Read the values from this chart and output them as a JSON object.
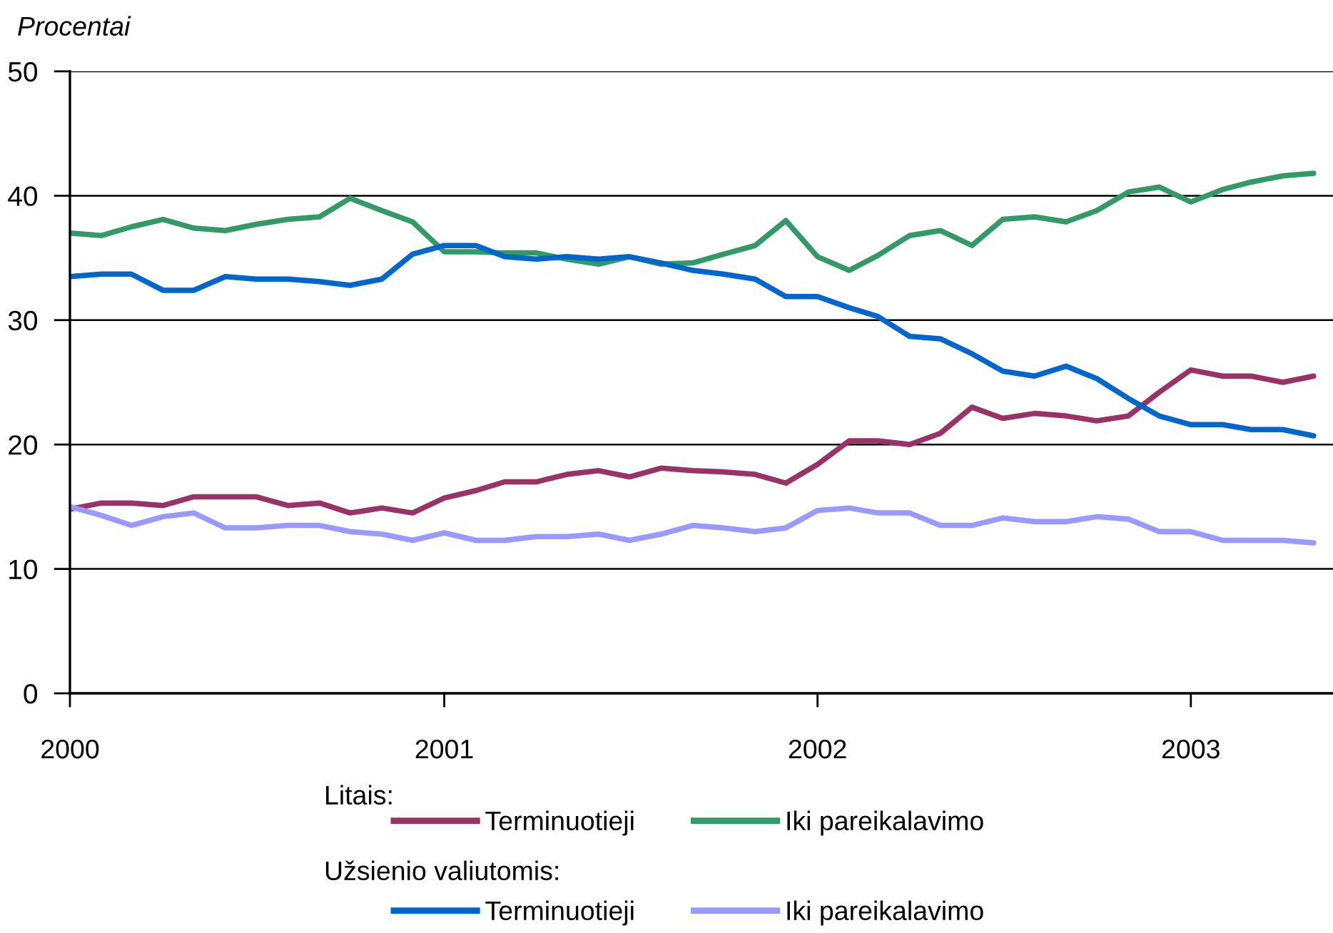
{
  "chart_data": {
    "type": "line",
    "ylabel": "Procentai",
    "x": [
      "2000-01",
      "2000-02",
      "2000-03",
      "2000-04",
      "2000-05",
      "2000-06",
      "2000-07",
      "2000-08",
      "2000-09",
      "2000-10",
      "2000-11",
      "2000-12",
      "2001-01",
      "2001-02",
      "2001-03",
      "2001-04",
      "2001-05",
      "2001-06",
      "2001-07",
      "2001-08",
      "2001-09",
      "2001-10",
      "2001-11",
      "2001-12",
      "2002-01",
      "2002-02",
      "2002-03",
      "2002-04",
      "2002-05",
      "2002-06",
      "2002-07",
      "2002-08",
      "2002-09",
      "2002-10",
      "2002-11",
      "2002-12",
      "2003-01",
      "2003-02",
      "2003-03",
      "2003-04",
      "2003-05"
    ],
    "series": [
      {
        "name": "Terminuotieji",
        "color": "#993366",
        "values": [
          14.8,
          15.3,
          15.3,
          15.1,
          15.8,
          15.8,
          15.8,
          15.1,
          15.3,
          14.5,
          14.9,
          14.5,
          15.7,
          16.3,
          17.0,
          17.0,
          17.6,
          17.9,
          17.4,
          18.1,
          17.9,
          17.8,
          17.6,
          16.9,
          18.4,
          20.3,
          20.3,
          20.0,
          20.9,
          23.0,
          22.1,
          22.5,
          22.3,
          21.9,
          22.3,
          24.2,
          26.0,
          25.5,
          25.5,
          25.0,
          25.5
        ]
      },
      {
        "name": "Iki pareikalavimo",
        "color": "#339966",
        "values": [
          37.0,
          36.8,
          37.5,
          38.1,
          37.4,
          37.2,
          37.7,
          38.1,
          38.3,
          39.8,
          38.8,
          37.9,
          35.5,
          35.5,
          35.4,
          35.4,
          34.9,
          34.5,
          35.1,
          34.5,
          34.6,
          35.3,
          36.0,
          38.0,
          35.1,
          34.0,
          35.2,
          36.8,
          37.2,
          36.0,
          38.1,
          38.3,
          37.9,
          38.8,
          40.3,
          40.7,
          39.5,
          40.5,
          41.1,
          41.6,
          41.8
        ]
      },
      {
        "name": "Terminuotieji",
        "color": "#0066cc",
        "values": [
          33.5,
          33.7,
          33.7,
          32.4,
          32.4,
          33.5,
          33.3,
          33.3,
          33.1,
          32.8,
          33.3,
          35.3,
          36.0,
          36.0,
          35.1,
          34.9,
          35.1,
          34.9,
          35.1,
          34.6,
          34.0,
          33.7,
          33.3,
          31.9,
          31.9,
          31.0,
          30.3,
          28.7,
          28.5,
          27.3,
          25.9,
          25.5,
          26.3,
          25.3,
          23.7,
          22.3,
          21.6,
          21.6,
          21.2,
          21.2,
          20.7
        ]
      },
      {
        "name": "Iki pareikalavimo",
        "color": "#9999ff",
        "values": [
          15.0,
          14.3,
          13.5,
          14.2,
          14.5,
          13.3,
          13.3,
          13.5,
          13.5,
          13.0,
          12.8,
          12.3,
          12.9,
          12.3,
          12.3,
          12.6,
          12.6,
          12.8,
          12.3,
          12.8,
          13.5,
          13.3,
          13.0,
          13.3,
          14.7,
          14.9,
          14.5,
          14.5,
          13.5,
          13.5,
          14.1,
          13.8,
          13.8,
          14.2,
          14.0,
          13.0,
          13.0,
          12.3,
          12.3,
          12.3,
          12.1
        ]
      }
    ],
    "xlim": [
      "2000-01-01",
      "2003-05-20"
    ],
    "xticks": [
      "2000",
      "2001",
      "2002",
      "2003"
    ],
    "ylim": [
      0,
      50
    ],
    "yticks": [
      0,
      10,
      20,
      30,
      40,
      50
    ],
    "grid": "y",
    "legend": "bottom",
    "marker": "none",
    "line_style": "solid",
    "annotations": [
      "Litais:",
      "Užsienio valiutomis:"
    ]
  }
}
